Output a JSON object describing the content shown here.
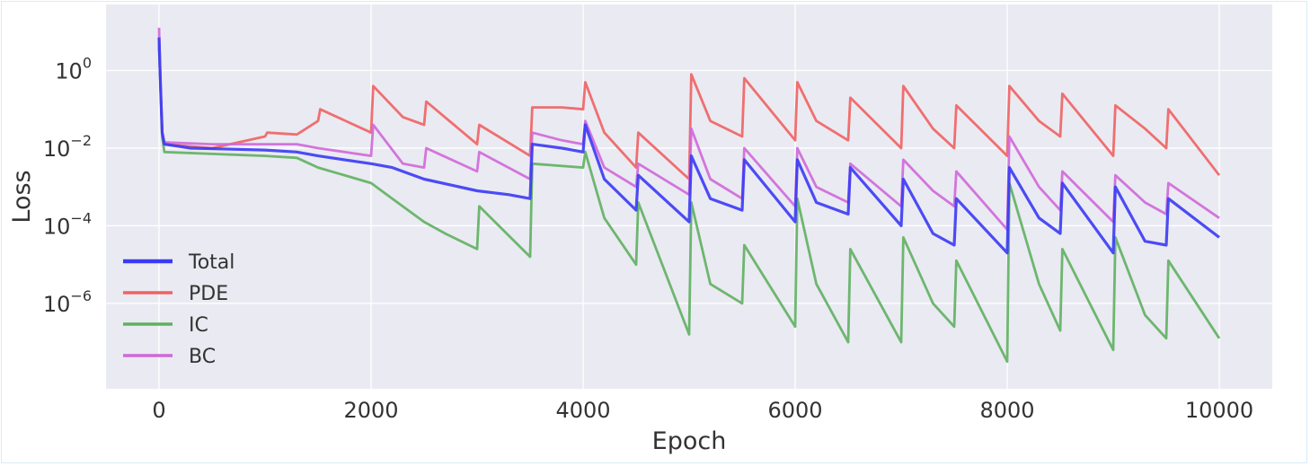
{
  "chart_data": {
    "type": "line",
    "xlabel": "Epoch",
    "ylabel": "Loss",
    "xlim": [
      -500,
      10500
    ],
    "yscale": "log",
    "ylim_log10": [
      -8.2,
      1.7
    ],
    "x_ticks": [
      0,
      2000,
      4000,
      6000,
      8000,
      10000
    ],
    "x_tick_labels": [
      "0",
      "2000",
      "4000",
      "6000",
      "8000",
      "10000"
    ],
    "y_ticks": [
      {
        "exp": 0,
        "base": "10",
        "sup": "0"
      },
      {
        "exp": -2,
        "base": "10",
        "sup": "−2"
      },
      {
        "exp": -4,
        "base": "10",
        "sup": "−4"
      },
      {
        "exp": -6,
        "base": "10",
        "sup": "−6"
      }
    ],
    "grid": true,
    "legend_position": "lower-left",
    "series": [
      {
        "name": "Total",
        "color": "#3a3af5",
        "points": [
          [
            0,
            0.85
          ],
          [
            15,
            -0.5
          ],
          [
            30,
            -1.6
          ],
          [
            50,
            -1.9
          ],
          [
            300,
            -2.0
          ],
          [
            1000,
            -2.05
          ],
          [
            1300,
            -2.1
          ],
          [
            1500,
            -2.2
          ],
          [
            2000,
            -2.4
          ],
          [
            2200,
            -2.5
          ],
          [
            2500,
            -2.8
          ],
          [
            3000,
            -3.1
          ],
          [
            3300,
            -3.2
          ],
          [
            3500,
            -3.3
          ],
          [
            3520,
            -1.9
          ],
          [
            3800,
            -2.0
          ],
          [
            4000,
            -2.1
          ],
          [
            4020,
            -1.4
          ],
          [
            4200,
            -2.8
          ],
          [
            4500,
            -3.6
          ],
          [
            4520,
            -2.7
          ],
          [
            5000,
            -3.9
          ],
          [
            5020,
            -2.2
          ],
          [
            5200,
            -3.3
          ],
          [
            5500,
            -3.6
          ],
          [
            5520,
            -2.3
          ],
          [
            6000,
            -3.9
          ],
          [
            6020,
            -2.3
          ],
          [
            6200,
            -3.4
          ],
          [
            6500,
            -3.7
          ],
          [
            6520,
            -2.5
          ],
          [
            7000,
            -4.0
          ],
          [
            7020,
            -2.8
          ],
          [
            7300,
            -4.2
          ],
          [
            7500,
            -4.5
          ],
          [
            7520,
            -3.3
          ],
          [
            8000,
            -4.7
          ],
          [
            8020,
            -2.5
          ],
          [
            8300,
            -3.8
          ],
          [
            8500,
            -4.2
          ],
          [
            8520,
            -2.9
          ],
          [
            9000,
            -4.7
          ],
          [
            9020,
            -3.0
          ],
          [
            9300,
            -4.4
          ],
          [
            9500,
            -4.5
          ],
          [
            9520,
            -3.3
          ],
          [
            10000,
            -4.3
          ]
        ]
      },
      {
        "name": "PDE",
        "color": "#f06262",
        "points": [
          [
            0,
            0.7
          ],
          [
            15,
            -0.5
          ],
          [
            30,
            -1.6
          ],
          [
            50,
            -1.9
          ],
          [
            500,
            -2.0
          ],
          [
            1000,
            -1.7
          ],
          [
            1020,
            -1.6
          ],
          [
            1300,
            -1.65
          ],
          [
            1500,
            -1.3
          ],
          [
            1520,
            -1.0
          ],
          [
            2000,
            -1.6
          ],
          [
            2020,
            -0.4
          ],
          [
            2300,
            -1.2
          ],
          [
            2500,
            -1.4
          ],
          [
            2520,
            -0.8
          ],
          [
            3000,
            -1.9
          ],
          [
            3020,
            -1.4
          ],
          [
            3500,
            -2.2
          ],
          [
            3520,
            -0.95
          ],
          [
            3800,
            -0.95
          ],
          [
            4000,
            -1.0
          ],
          [
            4020,
            -0.3
          ],
          [
            4200,
            -1.6
          ],
          [
            4500,
            -2.5
          ],
          [
            4520,
            -1.6
          ],
          [
            5000,
            -2.8
          ],
          [
            5020,
            -0.1
          ],
          [
            5200,
            -1.3
          ],
          [
            5500,
            -1.7
          ],
          [
            5520,
            -0.2
          ],
          [
            6000,
            -1.8
          ],
          [
            6020,
            -0.3
          ],
          [
            6200,
            -1.3
          ],
          [
            6500,
            -1.8
          ],
          [
            6520,
            -0.7
          ],
          [
            7000,
            -2.0
          ],
          [
            7020,
            -0.4
          ],
          [
            7300,
            -1.5
          ],
          [
            7500,
            -2.0
          ],
          [
            7520,
            -0.9
          ],
          [
            8000,
            -2.2
          ],
          [
            8020,
            -0.4
          ],
          [
            8300,
            -1.3
          ],
          [
            8500,
            -1.7
          ],
          [
            8520,
            -0.6
          ],
          [
            9000,
            -2.2
          ],
          [
            9020,
            -0.9
          ],
          [
            9300,
            -1.5
          ],
          [
            9500,
            -2.0
          ],
          [
            9520,
            -1.0
          ],
          [
            10000,
            -2.7
          ]
        ]
      },
      {
        "name": "IC",
        "color": "#5fb060",
        "points": [
          [
            0,
            0.6
          ],
          [
            15,
            -0.5
          ],
          [
            30,
            -1.7
          ],
          [
            50,
            -2.1
          ],
          [
            500,
            -2.15
          ],
          [
            1000,
            -2.2
          ],
          [
            1300,
            -2.25
          ],
          [
            1500,
            -2.5
          ],
          [
            2000,
            -2.9
          ],
          [
            2200,
            -3.3
          ],
          [
            2500,
            -3.9
          ],
          [
            2700,
            -4.2
          ],
          [
            3000,
            -4.6
          ],
          [
            3020,
            -3.5
          ],
          [
            3500,
            -4.8
          ],
          [
            3520,
            -2.4
          ],
          [
            4000,
            -2.5
          ],
          [
            4020,
            -2.1
          ],
          [
            4200,
            -3.8
          ],
          [
            4500,
            -5.0
          ],
          [
            4520,
            -3.4
          ],
          [
            5000,
            -6.8
          ],
          [
            5020,
            -3.4
          ],
          [
            5200,
            -5.5
          ],
          [
            5500,
            -6.0
          ],
          [
            5520,
            -4.5
          ],
          [
            6000,
            -6.6
          ],
          [
            6020,
            -3.3
          ],
          [
            6200,
            -5.5
          ],
          [
            6500,
            -7.0
          ],
          [
            6520,
            -4.6
          ],
          [
            7000,
            -7.0
          ],
          [
            7020,
            -4.3
          ],
          [
            7300,
            -6.0
          ],
          [
            7500,
            -6.6
          ],
          [
            7520,
            -4.9
          ],
          [
            8000,
            -7.5
          ],
          [
            8020,
            -2.9
          ],
          [
            8300,
            -5.5
          ],
          [
            8500,
            -6.7
          ],
          [
            8520,
            -4.6
          ],
          [
            9000,
            -7.2
          ],
          [
            9020,
            -4.3
          ],
          [
            9300,
            -6.3
          ],
          [
            9500,
            -6.9
          ],
          [
            9520,
            -4.9
          ],
          [
            10000,
            -6.9
          ]
        ]
      },
      {
        "name": "BC",
        "color": "#cf68d9",
        "points": [
          [
            0,
            1.1
          ],
          [
            15,
            -0.5
          ],
          [
            30,
            -1.6
          ],
          [
            50,
            -1.85
          ],
          [
            500,
            -1.9
          ],
          [
            1000,
            -1.9
          ],
          [
            1300,
            -1.9
          ],
          [
            1500,
            -2.0
          ],
          [
            2000,
            -2.2
          ],
          [
            2020,
            -1.4
          ],
          [
            2300,
            -2.4
          ],
          [
            2500,
            -2.5
          ],
          [
            2520,
            -2.0
          ],
          [
            3000,
            -2.6
          ],
          [
            3020,
            -2.1
          ],
          [
            3500,
            -2.8
          ],
          [
            3520,
            -1.6
          ],
          [
            3800,
            -1.8
          ],
          [
            4000,
            -1.9
          ],
          [
            4020,
            -1.3
          ],
          [
            4200,
            -2.5
          ],
          [
            4500,
            -3.0
          ],
          [
            4520,
            -2.4
          ],
          [
            5000,
            -3.2
          ],
          [
            5020,
            -1.5
          ],
          [
            5200,
            -2.8
          ],
          [
            5500,
            -3.3
          ],
          [
            5520,
            -2.0
          ],
          [
            6000,
            -3.5
          ],
          [
            6020,
            -2.0
          ],
          [
            6200,
            -3.0
          ],
          [
            6500,
            -3.4
          ],
          [
            6520,
            -2.4
          ],
          [
            7000,
            -3.5
          ],
          [
            7020,
            -2.3
          ],
          [
            7300,
            -3.1
          ],
          [
            7500,
            -3.5
          ],
          [
            7520,
            -2.6
          ],
          [
            8000,
            -4.1
          ],
          [
            8020,
            -1.7
          ],
          [
            8300,
            -3.0
          ],
          [
            8500,
            -3.6
          ],
          [
            8520,
            -2.6
          ],
          [
            9000,
            -3.9
          ],
          [
            9020,
            -2.7
          ],
          [
            9300,
            -3.4
          ],
          [
            9500,
            -3.7
          ],
          [
            9520,
            -2.9
          ],
          [
            10000,
            -3.8
          ]
        ]
      }
    ]
  }
}
